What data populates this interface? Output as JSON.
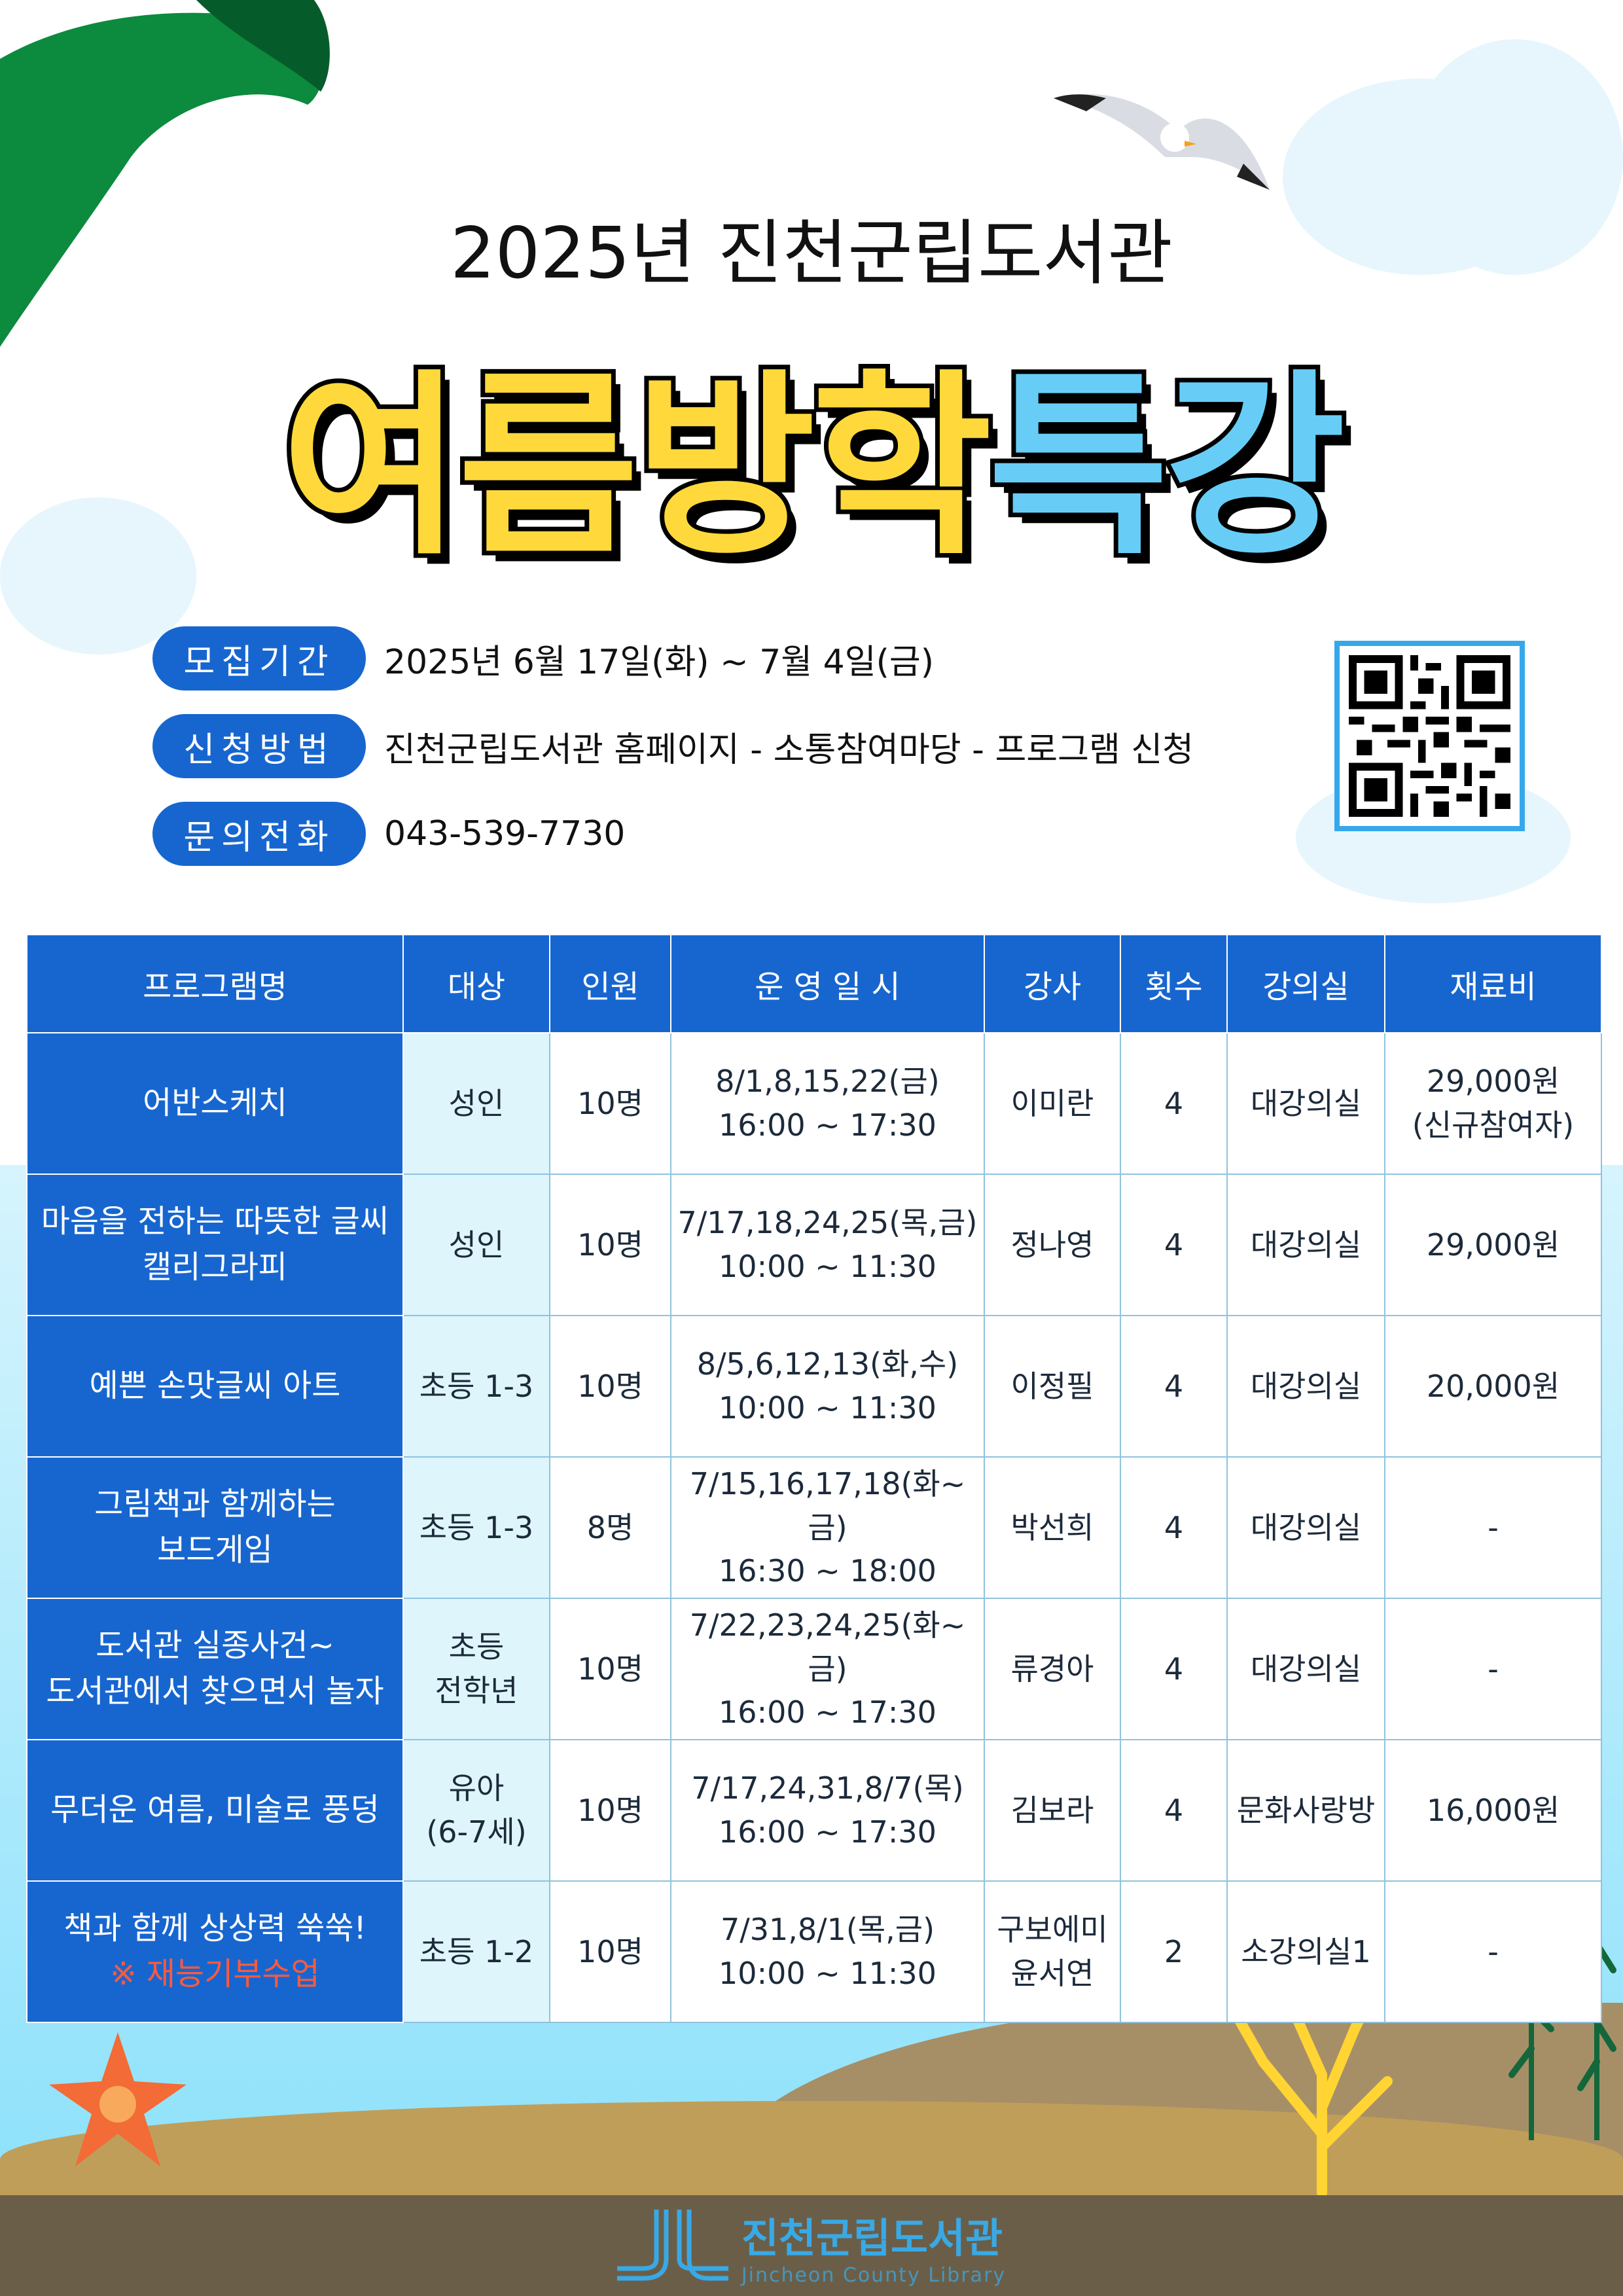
{
  "header": {
    "subtitle": "2025년 진천군립도서관",
    "title_part1": "여름방학",
    "title_part2": "특강"
  },
  "info": [
    {
      "label": "모집기간",
      "value": "2025년 6월 17일(화) ~ 7월 4일(금)"
    },
    {
      "label": "신청방법",
      "value": "진천군립도서관 홈페이지 - 소통참여마당 - 프로그램 신청"
    },
    {
      "label": "문의전화",
      "value": "043-539-7730"
    }
  ],
  "table": {
    "headers": [
      "프로그램명",
      "대상",
      "인원",
      "운 영 일 시",
      "강사",
      "횟수",
      "강의실",
      "재료비"
    ],
    "rows": [
      {
        "program": [
          "어반스케치"
        ],
        "target": [
          "성인"
        ],
        "people": "10명",
        "schedule": [
          "8/1,8,15,22(금)",
          "16:00 ~ 17:30"
        ],
        "instructor": [
          "이미란"
        ],
        "sessions": "4",
        "room": "대강의실",
        "fee": [
          "29,000원",
          "(신규참여자)"
        ]
      },
      {
        "program": [
          "마음을 전하는 따뜻한 글씨",
          "캘리그라피"
        ],
        "target": [
          "성인"
        ],
        "people": "10명",
        "schedule": [
          "7/17,18,24,25(목,금)",
          "10:00 ~ 11:30"
        ],
        "instructor": [
          "정나영"
        ],
        "sessions": "4",
        "room": "대강의실",
        "fee": [
          "29,000원"
        ]
      },
      {
        "program": [
          "예쁜 손맛글씨 아트"
        ],
        "target": [
          "초등 1-3"
        ],
        "people": "10명",
        "schedule": [
          "8/5,6,12,13(화,수)",
          "10:00 ~ 11:30"
        ],
        "instructor": [
          "이정필"
        ],
        "sessions": "4",
        "room": "대강의실",
        "fee": [
          "20,000원"
        ]
      },
      {
        "program": [
          "그림책과 함께하는",
          "보드게임"
        ],
        "target": [
          "초등 1-3"
        ],
        "people": "8명",
        "schedule": [
          "7/15,16,17,18(화~금)",
          "16:30 ~ 18:00"
        ],
        "instructor": [
          "박선희"
        ],
        "sessions": "4",
        "room": "대강의실",
        "fee": [
          "-"
        ]
      },
      {
        "program": [
          "도서관 실종사건~",
          "도서관에서 찾으면서 놀자"
        ],
        "target": [
          "초등",
          "전학년"
        ],
        "people": "10명",
        "schedule": [
          "7/22,23,24,25(화~금)",
          "16:00 ~ 17:30"
        ],
        "instructor": [
          "류경아"
        ],
        "sessions": "4",
        "room": "대강의실",
        "fee": [
          "-"
        ]
      },
      {
        "program": [
          "무더운 여름, 미술로 풍덩"
        ],
        "target": [
          "유아",
          "(6-7세)"
        ],
        "people": "10명",
        "schedule": [
          "7/17,24,31,8/7(목)",
          "16:00 ~ 17:30"
        ],
        "instructor": [
          "김보라"
        ],
        "sessions": "4",
        "room": "문화사랑방",
        "fee": [
          "16,000원"
        ]
      },
      {
        "program": [
          "책과 함께 상상력 쑥쑥!"
        ],
        "program_note": "※ 재능기부수업",
        "target": [
          "초등 1-2"
        ],
        "people": "10명",
        "schedule": [
          "7/31,8/1(목,금)",
          "10:00 ~ 11:30"
        ],
        "instructor": [
          "구보에미",
          "윤서연"
        ],
        "sessions": "2",
        "room": "소강의실1",
        "fee": [
          "-"
        ]
      }
    ]
  },
  "footer": {
    "logo_name": "진천군립도서관",
    "logo_en": "Jincheon County Library"
  },
  "colors": {
    "primary": "#1766d0",
    "title_yellow": "#ffd93b",
    "title_blue": "#67cdf6",
    "note_red": "#ff5a3c",
    "footer": "#6b5e48"
  }
}
